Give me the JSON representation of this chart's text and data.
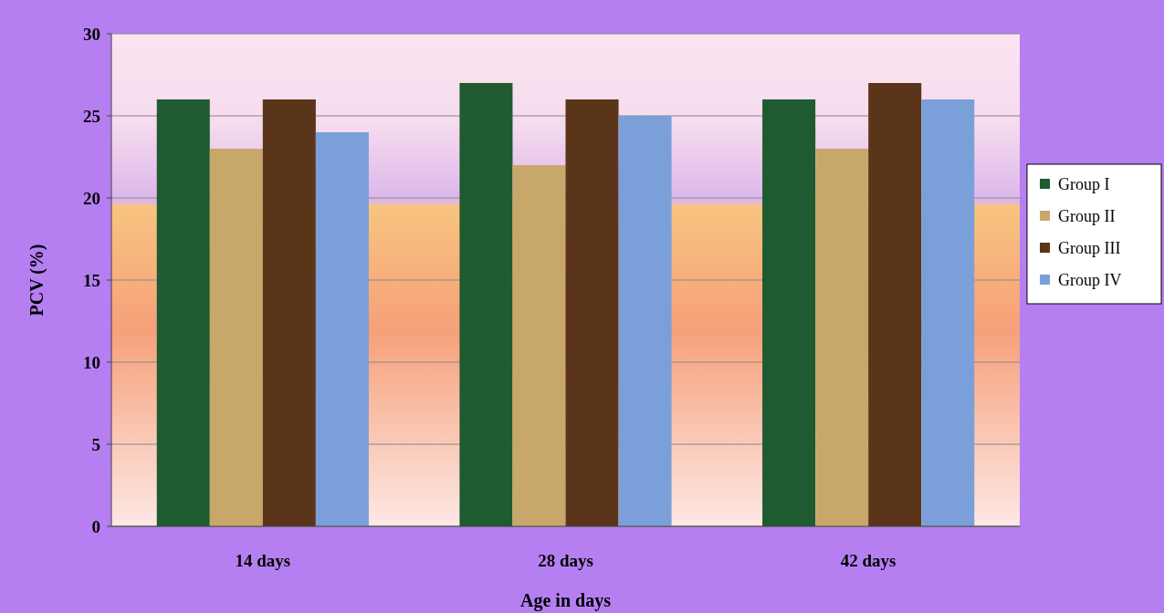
{
  "chart_data": {
    "type": "bar",
    "xlabel": "Age in days",
    "ylabel": "PCV (%)",
    "categories": [
      "14 days",
      "28 days",
      "42 days"
    ],
    "series": [
      {
        "name": "Group I",
        "color": "#1f5a30",
        "values": [
          26,
          27,
          26
        ]
      },
      {
        "name": "Group II",
        "color": "#c8a76a",
        "values": [
          23,
          22,
          23
        ]
      },
      {
        "name": "Group III",
        "color": "#5b3519",
        "values": [
          26,
          26,
          27
        ]
      },
      {
        "name": "Group IV",
        "color": "#7b9fd9",
        "values": [
          24,
          25,
          26
        ]
      }
    ],
    "ylim": [
      0,
      30
    ],
    "yticks": [
      0,
      5,
      10,
      15,
      20,
      25,
      30
    ],
    "grid": "y",
    "legend": "right"
  }
}
